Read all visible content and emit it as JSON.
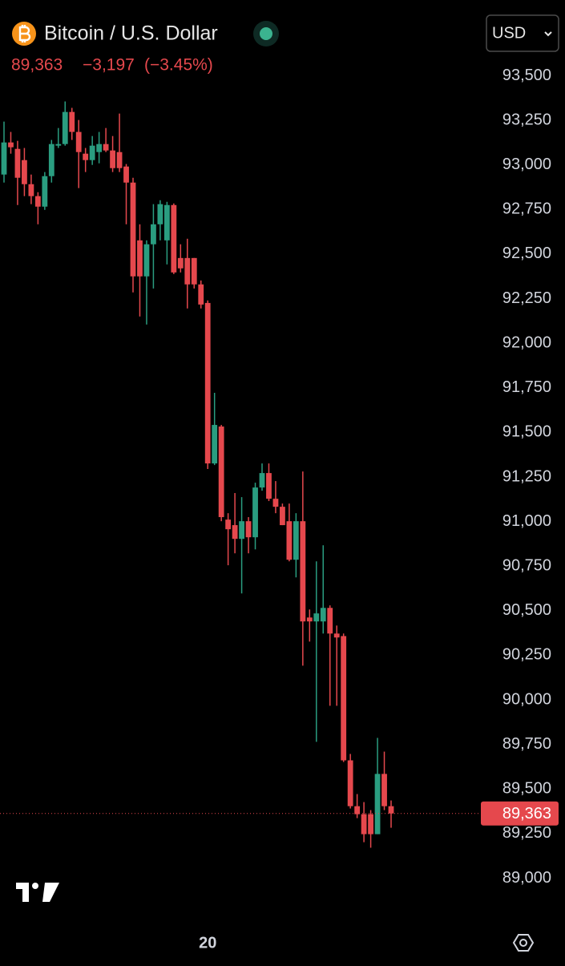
{
  "header": {
    "title": "Bitcoin / U.S. Dollar",
    "price": "89,363",
    "change": "−3,197",
    "change_pct": "(−3.45%)",
    "currency": "USD"
  },
  "chart_data": {
    "type": "candlestick",
    "categories": [
      null,
      null,
      null,
      null,
      null,
      null,
      null,
      null,
      null,
      null,
      null,
      null,
      null,
      null,
      null,
      null,
      null,
      null,
      null,
      null,
      null,
      null,
      null,
      null,
      null,
      null,
      null,
      null,
      null,
      null,
      "20",
      null,
      null,
      null,
      null,
      null,
      null,
      null,
      null,
      null,
      null,
      null,
      null,
      null,
      null,
      null,
      null,
      null,
      null,
      null,
      null,
      null,
      null,
      null,
      null,
      null,
      null,
      null
    ],
    "open": [
      92946,
      93126,
      93090,
      93027,
      92892,
      92825,
      92766,
      92937,
      93108,
      93117,
      93297,
      93185,
      93063,
      93027,
      93072,
      93117,
      93081,
      93072,
      92991,
      92901,
      92577,
      92375,
      92555,
      92667,
      92577,
      92775,
      92478,
      92478,
      92478,
      92330,
      92226,
      91326,
      91533,
      91011,
      90980,
      90903,
      91002,
      90912,
      91191,
      91272,
      91128,
      91083,
      91002,
      90786,
      91002,
      90462,
      90440,
      90440,
      90516,
      90372,
      90358,
      89661,
      89404,
      89359,
      89359,
      89247,
      89585,
      89404
    ],
    "high": [
      93243,
      93185,
      93135,
      93095,
      92946,
      92847,
      92960,
      93140,
      93207,
      93356,
      93320,
      93252,
      93095,
      93162,
      93185,
      93207,
      93162,
      93288,
      93005,
      92928,
      92667,
      92577,
      92780,
      92802,
      92793,
      92784,
      92555,
      92586,
      92478,
      92352,
      92240,
      91722,
      91542,
      91047,
      91160,
      91137,
      91025,
      91218,
      91326,
      91326,
      91227,
      91101,
      91101,
      91047,
      91281,
      90507,
      90777,
      90867,
      90530,
      90417,
      90372,
      89697,
      89472,
      89427,
      89382,
      89787,
      89710,
      89436
    ],
    "low": [
      92901,
      93063,
      92775,
      92825,
      92780,
      92667,
      92748,
      92901,
      93095,
      93108,
      93140,
      92870,
      92960,
      93000,
      93009,
      93072,
      92960,
      92960,
      92667,
      92285,
      92150,
      92105,
      92307,
      92577,
      92442,
      92388,
      92397,
      92195,
      92307,
      92195,
      91295,
      91317,
      91002,
      90755,
      90822,
      90597,
      90822,
      90844,
      91173,
      91115,
      91047,
      90980,
      90777,
      90687,
      90192,
      90327,
      89765,
      90372,
      89967,
      89967,
      89652,
      89391,
      89337,
      89202,
      89171,
      89247,
      89382,
      89283
    ],
    "close": [
      93126,
      93099,
      92928,
      92892,
      92825,
      92766,
      92937,
      93117,
      93117,
      93297,
      93185,
      93072,
      93027,
      93108,
      93117,
      93081,
      92982,
      92982,
      92901,
      92375,
      92375,
      92555,
      92667,
      92780,
      92775,
      92397,
      92420,
      92330,
      92330,
      92217,
      91326,
      91542,
      91025,
      90957,
      90903,
      91002,
      90912,
      91191,
      91272,
      91128,
      91083,
      90980,
      90786,
      91002,
      90440,
      90440,
      90485,
      90516,
      90372,
      90350,
      89661,
      89404,
      89359,
      89247,
      89247,
      89585,
      89404,
      89363
    ],
    "up_color": "#2a9d80",
    "down_color": "#e5484d",
    "last_price": {
      "value": 89363,
      "label": "89,363"
    },
    "ylim": [
      88800,
      93700
    ],
    "yticks": [
      {
        "value": 89000,
        "label": "89,000"
      },
      {
        "value": 89250,
        "label": "89,250"
      },
      {
        "value": 89500,
        "label": "89,500"
      },
      {
        "value": 89750,
        "label": "89,750"
      },
      {
        "value": 90000,
        "label": "90,000"
      },
      {
        "value": 90250,
        "label": "90,250"
      },
      {
        "value": 90500,
        "label": "90,500"
      },
      {
        "value": 90750,
        "label": "90,750"
      },
      {
        "value": 91000,
        "label": "91,000"
      },
      {
        "value": 91250,
        "label": "91,250"
      },
      {
        "value": 91500,
        "label": "91,500"
      },
      {
        "value": 91750,
        "label": "91,750"
      },
      {
        "value": 92000,
        "label": "92,000"
      },
      {
        "value": 92250,
        "label": "92,250"
      },
      {
        "value": 92500,
        "label": "92,500"
      },
      {
        "value": 92750,
        "label": "92,750"
      },
      {
        "value": 93000,
        "label": "93,000"
      },
      {
        "value": 93250,
        "label": "93,250"
      },
      {
        "value": 93500,
        "label": "93,500"
      }
    ],
    "grid": false
  }
}
